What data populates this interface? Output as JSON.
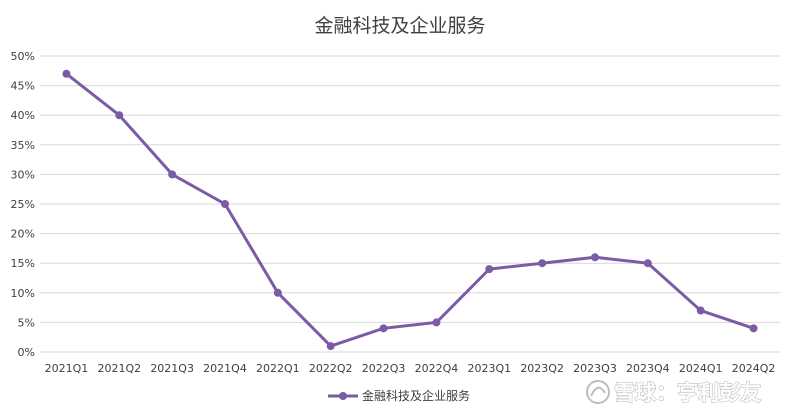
{
  "chart_data": {
    "type": "line",
    "title": "金融科技及企业服务",
    "categories": [
      "2021Q1",
      "2021Q2",
      "2021Q3",
      "2021Q4",
      "2022Q1",
      "2022Q2",
      "2022Q3",
      "2022Q4",
      "2023Q1",
      "2023Q2",
      "2023Q3",
      "2023Q4",
      "2024Q1",
      "2024Q2"
    ],
    "series": [
      {
        "name": "金融科技及企业服务",
        "values": [
          47,
          40,
          30,
          25,
          10,
          1,
          4,
          5,
          14,
          15,
          16,
          15,
          7,
          4
        ],
        "color": "#7b5ba6"
      }
    ],
    "y_ticks": [
      "0%",
      "5%",
      "10%",
      "15%",
      "20%",
      "25%",
      "30%",
      "35%",
      "40%",
      "45%",
      "50%"
    ],
    "ylim": [
      0,
      50
    ],
    "y_unit": "%",
    "grid": "horizontal",
    "legend_position": "bottom"
  },
  "watermark": {
    "icon": "snowball-logo-icon",
    "text": "雪球：亨利彭友"
  },
  "colors": {
    "line": "#7b5ba6",
    "grid": "#d9d9d9",
    "text": "#404040"
  }
}
